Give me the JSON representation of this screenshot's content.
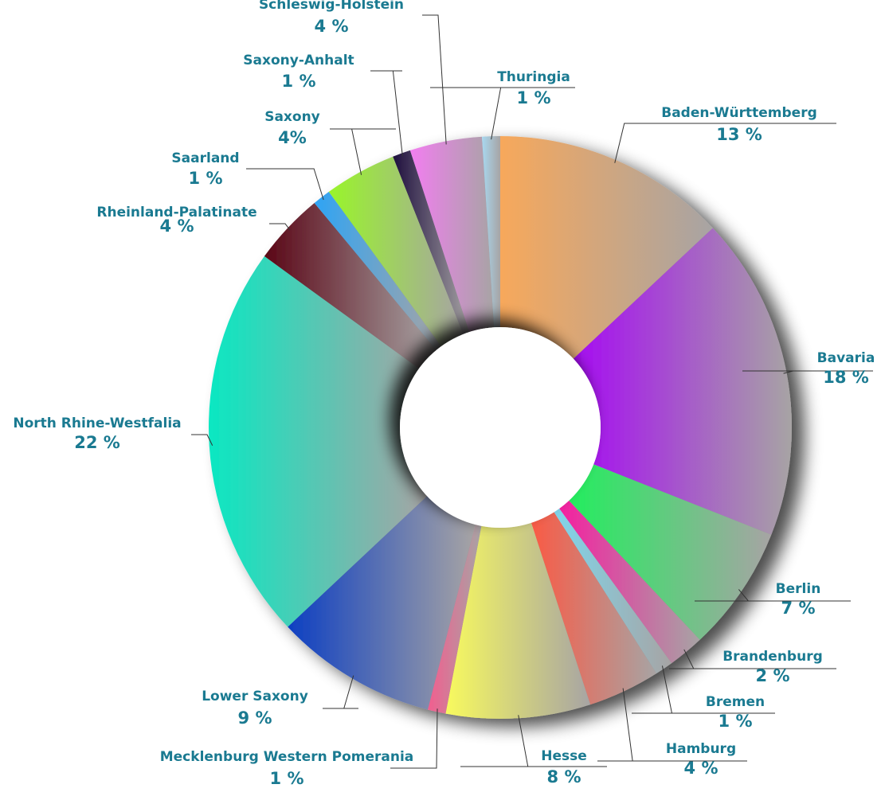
{
  "chart_data": {
    "type": "pie",
    "donut": true,
    "legend": "none",
    "slices": [
      {
        "name": "Baden-Württemberg",
        "label": "13 %",
        "value": 13,
        "color": "#f7a85b"
      },
      {
        "name": "Bavaria",
        "label": "18 %",
        "value": 18,
        "color": "#a60cf2"
      },
      {
        "name": "Berlin",
        "label": "7 %",
        "value": 7,
        "color": "#22ee5e"
      },
      {
        "name": "Brandenburg",
        "label": "2 %",
        "value": 2,
        "color": "#f51fa0"
      },
      {
        "name": "Bremen",
        "label": "1 %",
        "value": 1,
        "color": "#7fd6ec"
      },
      {
        "name": "Hamburg",
        "label": "4 %",
        "value": 4,
        "color": "#fa5a45"
      },
      {
        "name": "Hesse",
        "label": "8 %",
        "value": 8,
        "color": "#f8fa5e"
      },
      {
        "name": "Mecklenburg Western Pomerania",
        "label": "1 %",
        "value": 1,
        "color": "#f25e8f"
      },
      {
        "name": "Lower Saxony",
        "label": "9 %",
        "value": 9,
        "color": "#0d3fc2"
      },
      {
        "name": "North Rhine-Westfalia",
        "label": "22 %",
        "value": 22,
        "color": "#0ae8c2"
      },
      {
        "name": "Rheinland-Palatinate",
        "label": "4 %",
        "value": 4,
        "color": "#5a0616"
      },
      {
        "name": "Saarland",
        "label": "1 %",
        "value": 1,
        "color": "#2ea4f5"
      },
      {
        "name": "Saxony",
        "label": "4%",
        "value": 4,
        "color": "#99f52a"
      },
      {
        "name": "Saxony-Anhalt",
        "label": "1 %",
        "value": 1,
        "color": "#1e0f3e"
      },
      {
        "name": "Schleswig-Holstein",
        "label": "4 %",
        "value": 4,
        "color": "#f27ef0"
      },
      {
        "name": "Thuringia",
        "label": "1 %",
        "value": 1,
        "color": "#a8d8f0"
      }
    ]
  }
}
